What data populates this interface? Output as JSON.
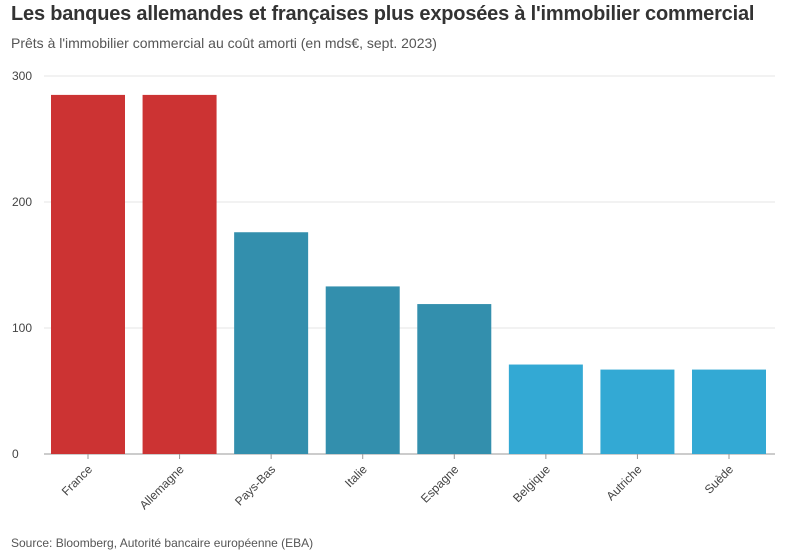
{
  "title": "Les banques allemandes et françaises plus exposées à l'immobilier commercial",
  "subtitle": "Prêts à l'immobilier commercial au coût amorti (en mds€, sept. 2023)",
  "source": "Source: Bloomberg, Autorité bancaire européenne (EBA)",
  "colors": {
    "highlight": "#cc3333",
    "mid": "#338fad",
    "light": "#33a9d4",
    "grid": "#e6e6e6",
    "axis": "#999999"
  },
  "chart_data": {
    "type": "bar",
    "categories": [
      "France",
      "Allemagne",
      "Pays-Bas",
      "Italie",
      "Espagne",
      "Belgique",
      "Autriche",
      "Suède"
    ],
    "values": [
      285,
      285,
      176,
      133,
      119,
      71,
      67,
      67
    ],
    "bar_colors": [
      "#cc3333",
      "#cc3333",
      "#338fad",
      "#338fad",
      "#338fad",
      "#33a9d4",
      "#33a9d4",
      "#33a9d4"
    ],
    "ylim": [
      0,
      300
    ],
    "yticks": [
      "0",
      "100",
      "200",
      "300"
    ],
    "xlabel": "",
    "ylabel": "",
    "grid": true,
    "legend": "none"
  }
}
